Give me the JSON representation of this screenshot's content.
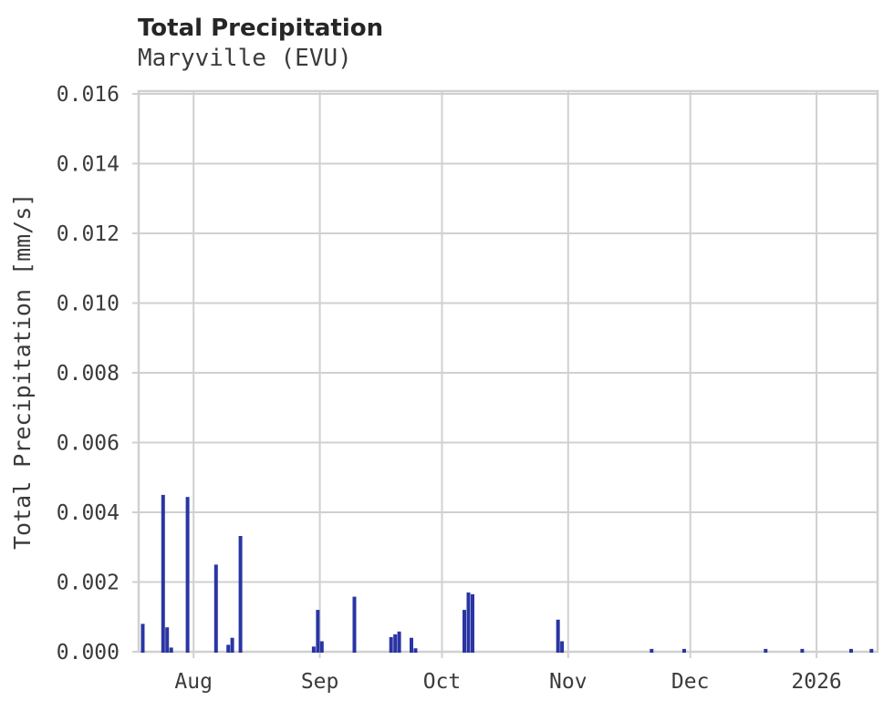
{
  "chart_data": {
    "type": "bar",
    "title": "Total Precipitation",
    "subtitle": "Maryville (EVU)",
    "xlabel": "",
    "ylabel": "Total Precipitation [mm/s]",
    "ylim": [
      0,
      0.016
    ],
    "ytick_step": 0.002,
    "ytick_labels": [
      "0.000",
      "0.002",
      "0.004",
      "0.006",
      "0.008",
      "0.010",
      "0.012",
      "0.014",
      "0.016"
    ],
    "grid": true,
    "legend": false,
    "x_axis_type": "time",
    "x_range": [
      "2025-07-18T12:00:00Z",
      "2026-01-16T00:00:00Z"
    ],
    "x_ticks": [
      {
        "label": "Aug",
        "date": "2025-08-01"
      },
      {
        "label": "Sep",
        "date": "2025-09-01"
      },
      {
        "label": "Oct",
        "date": "2025-10-01"
      },
      {
        "label": "Nov",
        "date": "2025-11-01"
      },
      {
        "label": "Dec",
        "date": "2025-12-01"
      },
      {
        "label": "2026",
        "date": "2026-01-01"
      }
    ],
    "bars": [
      {
        "date": "2025-07-19",
        "value": 0.0008
      },
      {
        "date": "2025-07-24",
        "value": 0.0045
      },
      {
        "date": "2025-07-25",
        "value": 0.0007
      },
      {
        "date": "2025-07-26",
        "value": 0.00012
      },
      {
        "date": "2025-07-30",
        "value": 0.00444
      },
      {
        "date": "2025-08-06",
        "value": 0.0025
      },
      {
        "date": "2025-08-09",
        "value": 0.0002
      },
      {
        "date": "2025-08-10",
        "value": 0.0004
      },
      {
        "date": "2025-08-12",
        "value": 0.00332
      },
      {
        "date": "2025-08-30",
        "value": 0.00015
      },
      {
        "date": "2025-08-31",
        "value": 0.0012
      },
      {
        "date": "2025-09-01",
        "value": 0.0003
      },
      {
        "date": "2025-09-09",
        "value": 0.00158
      },
      {
        "date": "2025-09-18",
        "value": 0.00042
      },
      {
        "date": "2025-09-19",
        "value": 0.0005
      },
      {
        "date": "2025-09-20",
        "value": 0.00058
      },
      {
        "date": "2025-09-23",
        "value": 0.0004
      },
      {
        "date": "2025-09-24",
        "value": 0.0001
      },
      {
        "date": "2025-10-06",
        "value": 0.0012
      },
      {
        "date": "2025-10-07",
        "value": 0.0017
      },
      {
        "date": "2025-10-08",
        "value": 0.00165
      },
      {
        "date": "2025-10-29",
        "value": 0.00092
      },
      {
        "date": "2025-10-30",
        "value": 0.0003
      },
      {
        "date": "2025-11-21",
        "value": 8e-05
      },
      {
        "date": "2025-11-29",
        "value": 8e-05
      },
      {
        "date": "2025-12-19",
        "value": 8e-05
      },
      {
        "date": "2025-12-28",
        "value": 8e-05
      },
      {
        "date": "2026-01-09",
        "value": 8e-05
      },
      {
        "date": "2026-01-14",
        "value": 8e-05
      }
    ],
    "colors": {
      "bar": "#2a35a3",
      "grid": "#d0d0d0",
      "tick_text": "#3b3b3b",
      "title_text": "#262626",
      "background": "#ffffff"
    }
  }
}
